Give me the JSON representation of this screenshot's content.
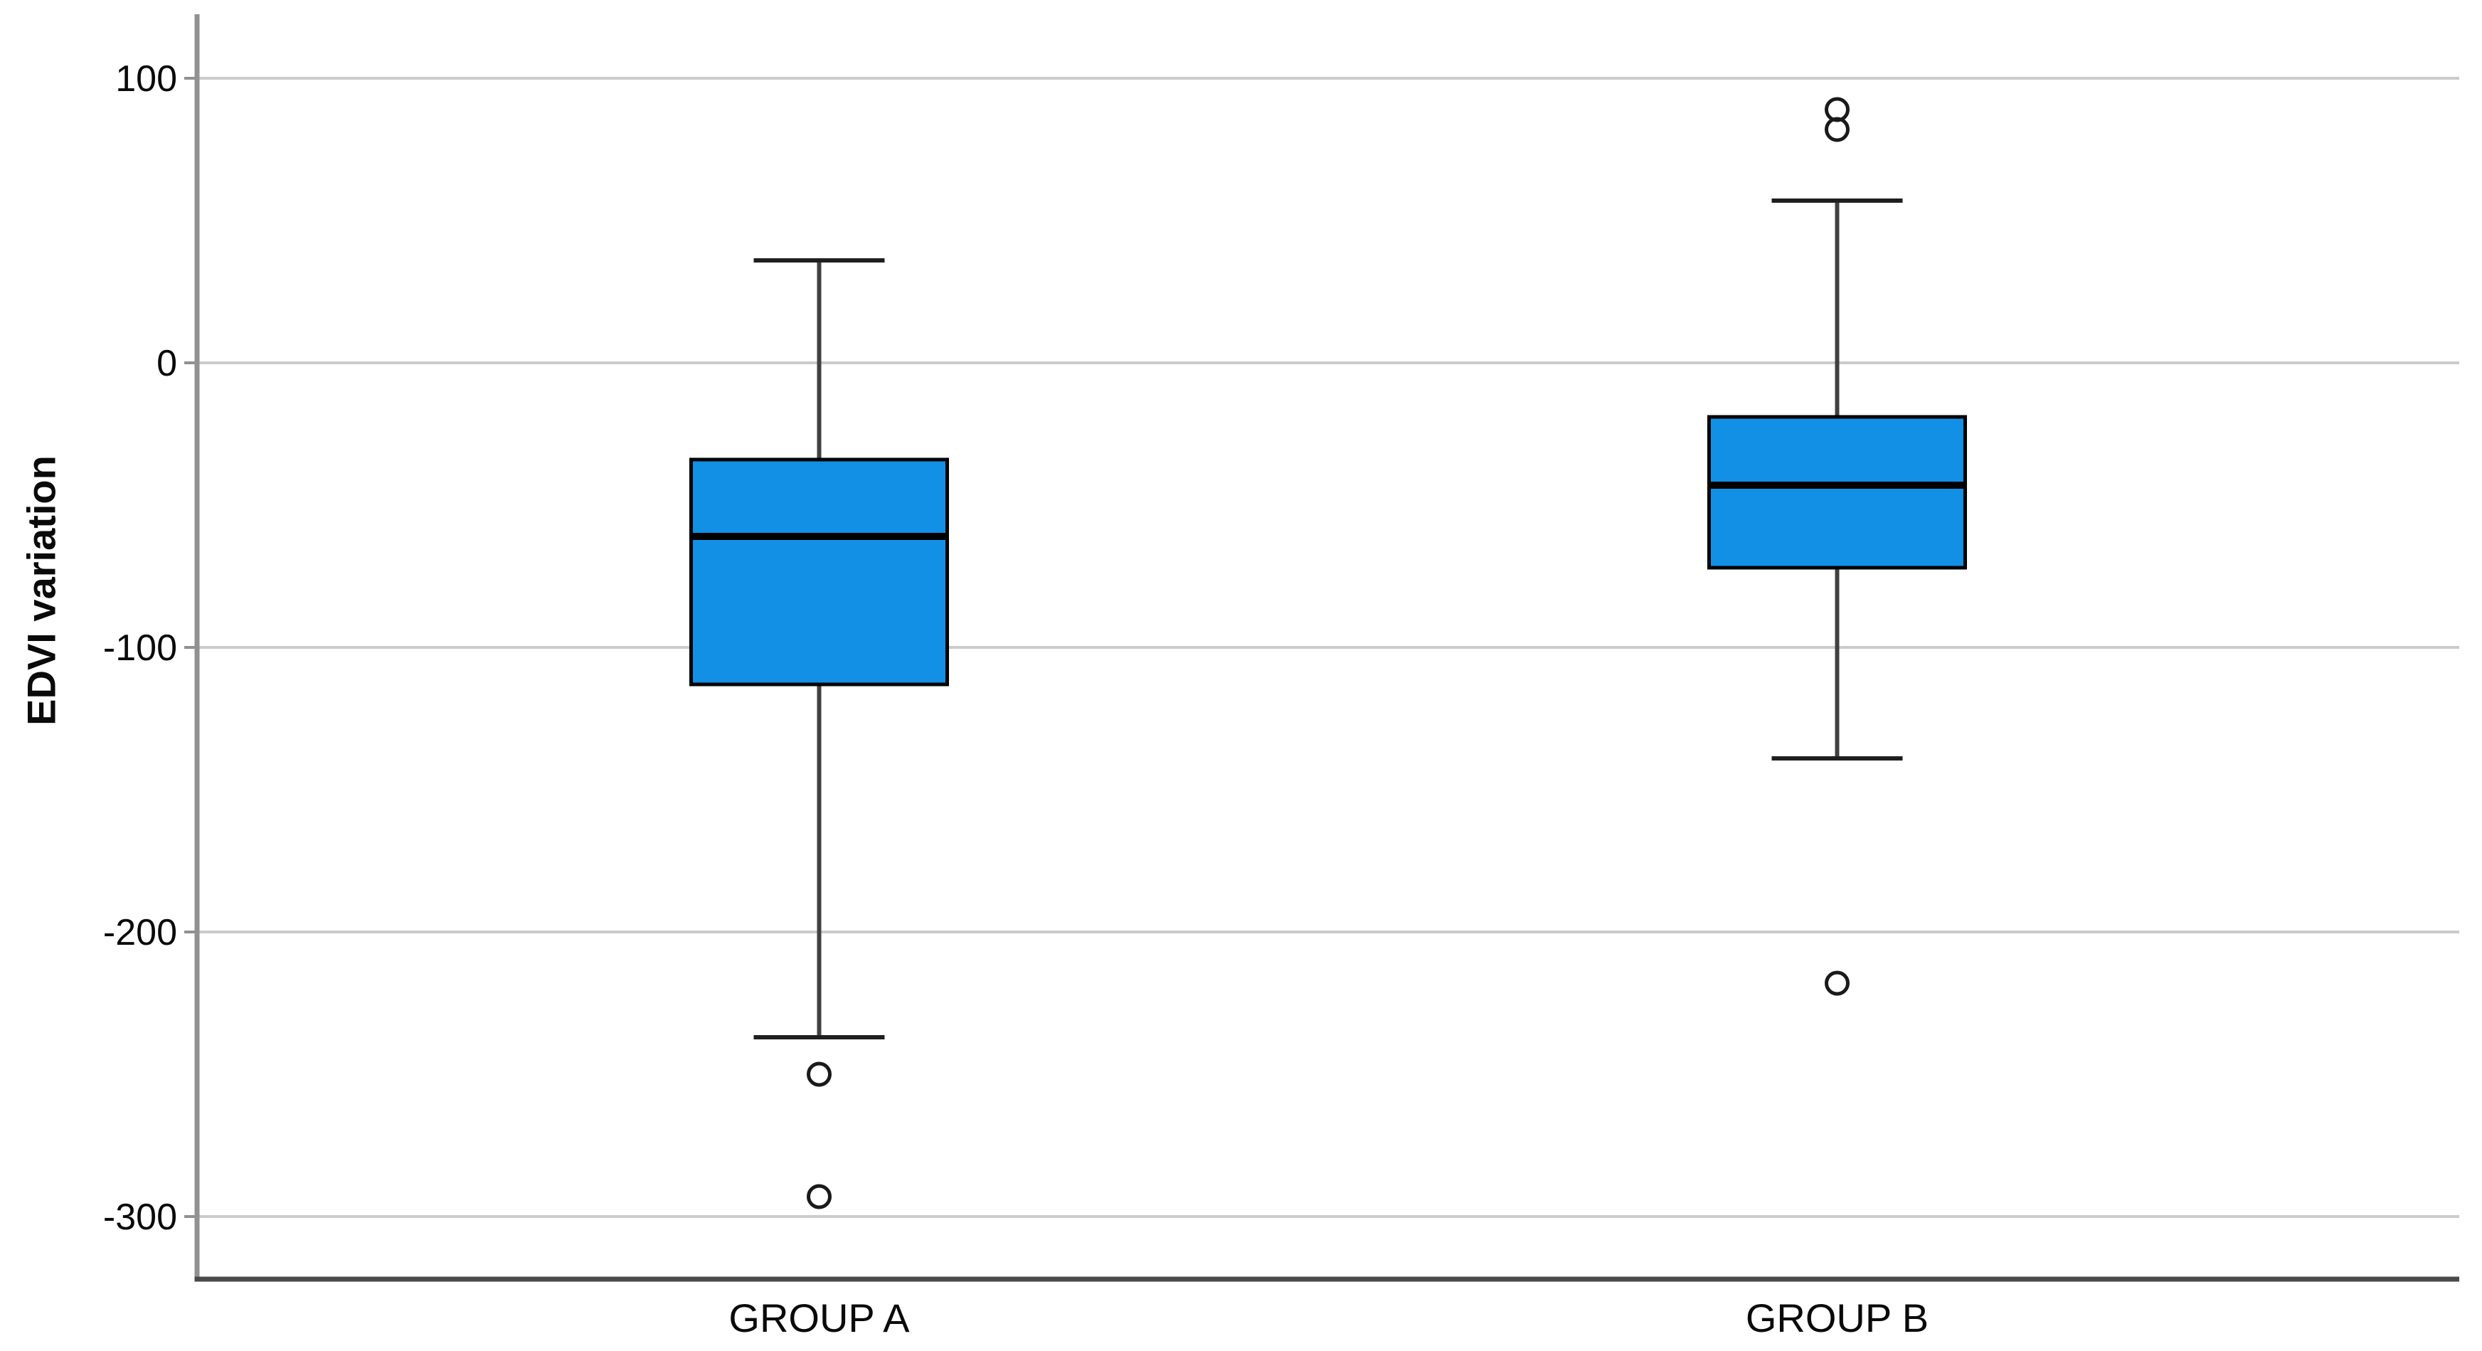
{
  "chart_data": {
    "type": "boxplot",
    "title": "",
    "ylabel": "EDVI variation",
    "xlabel": "",
    "categories": [
      "GROUP A",
      "GROUP B"
    ],
    "yticks": [
      100,
      0,
      -100,
      -200,
      -300
    ],
    "ylim": [
      -322,
      122.5
    ],
    "grid": "horizontal-gridlines",
    "legend": "none",
    "series": [
      {
        "name": "GROUP A",
        "whisker_low": -237,
        "q1": -113,
        "median": -61,
        "q3": -34,
        "whisker_high": 36,
        "outliers": [
          -250,
          -293
        ]
      },
      {
        "name": "GROUP B",
        "whisker_low": -139,
        "q1": -72,
        "median": -43,
        "q3": -19,
        "whisker_high": 57,
        "outliers": [
          89,
          82,
          -218
        ]
      }
    ],
    "colors": {
      "box_fill": "#1190E6",
      "box_border": "#000000",
      "median": "#000000",
      "whisker": "#404040",
      "whisker_cap": "#1F1F1F",
      "outlier_stroke": "#1A1A1A",
      "gridline": "#CBCBCB",
      "y_axis_line": "#919191",
      "x_axis_line": "#4A4A4A",
      "text": "#0A0A0A",
      "background": "#FFFFFF"
    }
  }
}
